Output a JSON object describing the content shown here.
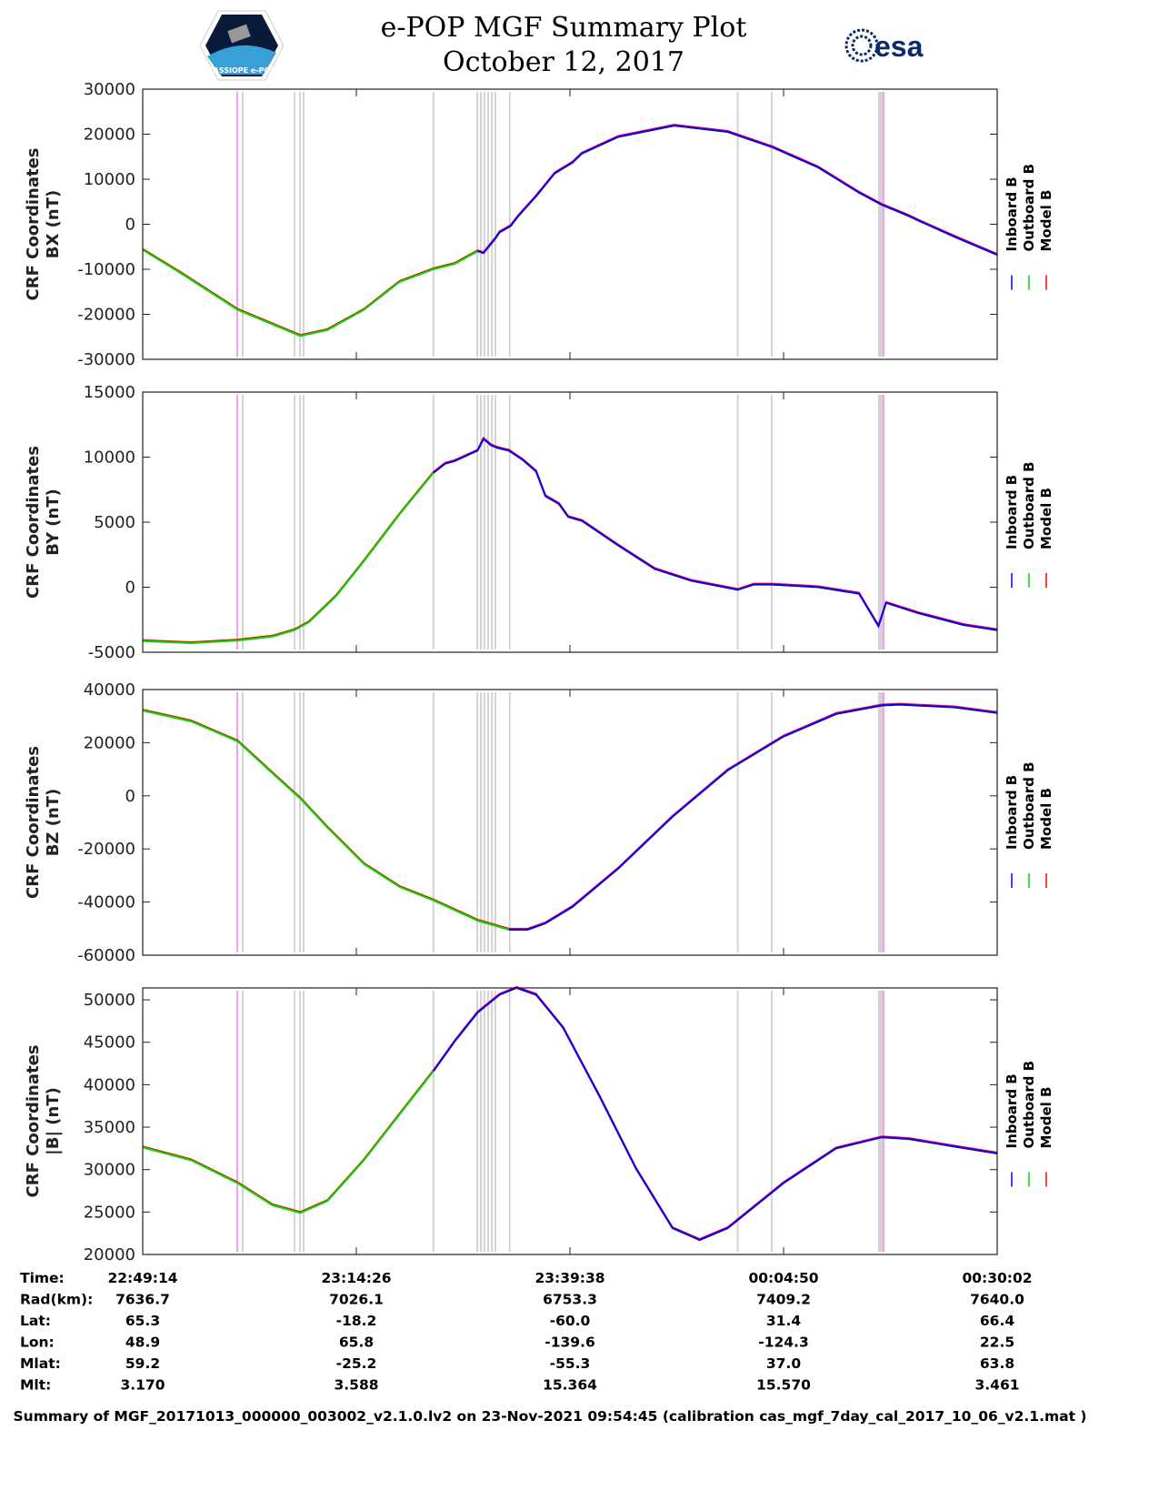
{
  "header": {
    "title_line1": "e-POP MGF Summary Plot",
    "title_line2": "October 12, 2017",
    "left_logo_text": "CASSIOPE e-POP",
    "right_logo_text": "esa"
  },
  "colors": {
    "inboard": "#0000ff",
    "outboard": "#00dd00",
    "model": "#ff0000",
    "event_gray": "#d3d3d3",
    "event_pink": "#f0a0f0"
  },
  "chart_data": [
    {
      "type": "line",
      "ylabel_line1": "CRF Coordinates",
      "ylabel_line2": "BX (nT)",
      "ylim": [
        -30000,
        30000
      ],
      "yticks": [
        -30000,
        -20000,
        -10000,
        0,
        10000,
        20000,
        30000
      ],
      "outboard_range": [
        0,
        39.5
      ],
      "inboard_range": [
        39.5,
        100.8
      ],
      "x": [
        0,
        4.6,
        11.2,
        18.6,
        21.8,
        26.1,
        30.3,
        34.3,
        36.8,
        39.5,
        40.2,
        41.6,
        42.1,
        43.4,
        44.3,
        46.4,
        48.6,
        50.7,
        51.8,
        56.1,
        62.7,
        69.0,
        74.3,
        79.7,
        84.5,
        87.2,
        90.4,
        91.5,
        95.8,
        100.8
      ],
      "values": [
        -5700,
        -11000,
        -19000,
        -24800,
        -23500,
        -19000,
        -12800,
        -10000,
        -8800,
        -6000,
        -6400,
        -3200,
        -1800,
        -400,
        1800,
        6200,
        11300,
        13700,
        15700,
        19400,
        21900,
        20500,
        17100,
        12600,
        7000,
        4300,
        1800,
        800,
        -2800,
        -6800
      ]
    },
    {
      "type": "line",
      "ylabel_line1": "CRF Coordinates",
      "ylabel_line2": "BY (nT)",
      "ylim": [
        -5000,
        15000
      ],
      "yticks": [
        -5000,
        0,
        5000,
        10000,
        15000
      ],
      "outboard_range": [
        0,
        34.3
      ],
      "inboard_range": [
        34.3,
        100.8
      ],
      "x": [
        0,
        5.7,
        11.2,
        15.3,
        17.9,
        19.6,
        22.8,
        26.1,
        30.3,
        34.3,
        35.7,
        36.8,
        39.5,
        40.2,
        41.1,
        41.9,
        43.2,
        44.8,
        46.4,
        47.5,
        49.1,
        50.2,
        51.8,
        56.1,
        60.4,
        64.7,
        70.2,
        72.1,
        74.2,
        79.7,
        84.5,
        86.8,
        87.7,
        91.5,
        96.8,
        100.8
      ],
      "values": [
        -4150,
        -4300,
        -4100,
        -3800,
        -3300,
        -2700,
        -700,
        2000,
        5600,
        8800,
        9500,
        9700,
        10500,
        11400,
        10900,
        10700,
        10500,
        9800,
        8900,
        7000,
        6400,
        5400,
        5100,
        3200,
        1400,
        500,
        -200,
        200,
        200,
        0,
        -500,
        -3000,
        -1200,
        -2000,
        -2900,
        -3300
      ]
    },
    {
      "type": "line",
      "ylabel_line1": "CRF Coordinates",
      "ylabel_line2": "BZ (nT)",
      "ylim": [
        -60000,
        40000
      ],
      "yticks": [
        -60000,
        -40000,
        -20000,
        0,
        20000,
        40000
      ],
      "outboard_range": [
        0,
        43.2
      ],
      "inboard_range": [
        43.2,
        100.8
      ],
      "x": [
        0,
        5.7,
        11.2,
        15.3,
        18.6,
        21.8,
        26.1,
        30.3,
        34.3,
        39.5,
        43.2,
        45.4,
        47.5,
        50.7,
        56.1,
        62.5,
        69.0,
        75.6,
        81.8,
        87.2,
        89.3,
        95.8,
        100.8
      ],
      "values": [
        32100,
        28000,
        20500,
        8500,
        -1100,
        -12000,
        -25700,
        -34300,
        -39400,
        -47000,
        -50400,
        -50400,
        -48000,
        -41800,
        -27400,
        -7900,
        9600,
        22300,
        30800,
        34000,
        34300,
        33300,
        31200
      ]
    },
    {
      "type": "line",
      "ylabel_line1": "CRF Coordinates",
      "ylabel_line2": "|B| (nT)",
      "ylim": [
        20000,
        51400
      ],
      "yticks": [
        20000,
        25000,
        30000,
        35000,
        40000,
        45000,
        50000
      ],
      "outboard_range": [
        0,
        34.3
      ],
      "inboard_range": [
        34.3,
        100.8
      ],
      "x": [
        0,
        5.7,
        11.2,
        15.3,
        18.6,
        21.8,
        26.1,
        30.3,
        34.3,
        36.8,
        39.5,
        42.1,
        44.1,
        46.4,
        49.6,
        53.9,
        58.2,
        62.5,
        65.7,
        69.0,
        75.6,
        81.8,
        87.2,
        90.4,
        95.8,
        100.8
      ],
      "values": [
        32600,
        31100,
        28400,
        25800,
        24900,
        26300,
        31100,
        36500,
        41600,
        45100,
        48500,
        50600,
        51400,
        50600,
        46700,
        38600,
        30100,
        23100,
        21700,
        23100,
        28400,
        32500,
        33800,
        33600,
        32700,
        31900
      ]
    }
  ],
  "x_axis": {
    "units": "minutes since 22:49:14",
    "xlim": [
      0,
      100.8
    ],
    "xticks": [
      0,
      25.2,
      50.4,
      75.6,
      100.8
    ]
  },
  "event_markers": {
    "gray": [
      11.8,
      17.9,
      18.55,
      18.98,
      34.3,
      39.46,
      39.9,
      40.3,
      40.75,
      41.2,
      41.6,
      43.3,
      70.2,
      74.2,
      86.85,
      87.0,
      87.15,
      87.3
    ],
    "pink": [
      11.15,
      87.4
    ]
  },
  "legend": [
    "Inboard B",
    "Outboard B",
    "Model B"
  ],
  "orbit_table": {
    "rows": [
      {
        "label": "Time:",
        "values": [
          "22:49:14",
          "23:14:26",
          "23:39:38",
          "00:04:50",
          "00:30:02"
        ]
      },
      {
        "label": "Rad(km):",
        "values": [
          "7636.7",
          "7026.1",
          "6753.3",
          "7409.2",
          "7640.0"
        ]
      },
      {
        "label": "Lat:",
        "values": [
          "65.3",
          "-18.2",
          "-60.0",
          "31.4",
          "66.4"
        ]
      },
      {
        "label": "Lon:",
        "values": [
          "48.9",
          "65.8",
          "-139.6",
          "-124.3",
          "22.5"
        ]
      },
      {
        "label": "Mlat:",
        "values": [
          "59.2",
          "-25.2",
          "-55.3",
          "37.0",
          "63.8"
        ]
      },
      {
        "label": "Mlt:",
        "values": [
          "3.170",
          "3.588",
          "15.364",
          "15.570",
          "3.461"
        ]
      }
    ]
  },
  "footer": "Summary of MGF_20171013_000000_003002_v2.1.0.lv2 on 23-Nov-2021 09:54:45 (calibration cas_mgf_7day_cal_2017_10_06_v2.1.mat )"
}
